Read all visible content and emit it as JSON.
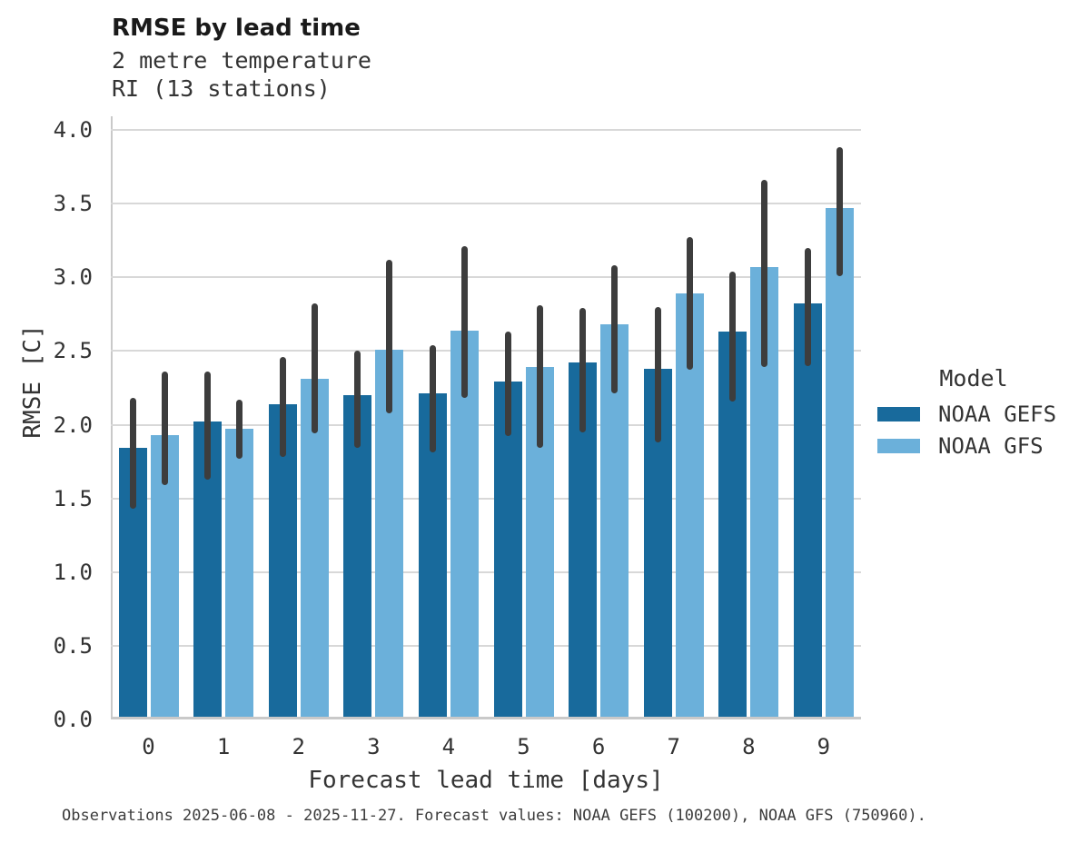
{
  "chart_data": {
    "type": "bar",
    "title": "RMSE by lead time",
    "subtitle_line1": "2 metre temperature",
    "subtitle_line2": "RI (13 stations)",
    "xlabel": "Forecast lead time [days]",
    "ylabel": "RMSE [C]",
    "categories": [
      "0",
      "1",
      "2",
      "3",
      "4",
      "5",
      "6",
      "7",
      "8",
      "9"
    ],
    "ylim": [
      0.0,
      4.0
    ],
    "ytick_step": 0.5,
    "grid": true,
    "legend": {
      "title": "Model",
      "position": "right"
    },
    "series": [
      {
        "name": "NOAA GEFS",
        "color": "#186a9c",
        "values": [
          1.84,
          2.02,
          2.14,
          2.2,
          2.21,
          2.29,
          2.42,
          2.38,
          2.63,
          2.82
        ],
        "err_low": [
          1.43,
          1.63,
          1.78,
          1.84,
          1.81,
          1.92,
          1.95,
          1.88,
          2.16,
          2.4
        ],
        "err_high": [
          2.18,
          2.36,
          2.46,
          2.5,
          2.54,
          2.63,
          2.79,
          2.8,
          3.04,
          3.2
        ]
      },
      {
        "name": "NOAA GFS",
        "color": "#6bb0da",
        "values": [
          1.93,
          1.97,
          2.31,
          2.51,
          2.64,
          2.39,
          2.68,
          2.89,
          3.07,
          3.47
        ],
        "err_low": [
          1.59,
          1.77,
          1.94,
          2.08,
          2.18,
          1.84,
          2.21,
          2.37,
          2.39,
          3.01
        ],
        "err_high": [
          2.36,
          2.17,
          2.82,
          3.12,
          3.21,
          2.81,
          3.08,
          3.27,
          3.66,
          3.88
        ]
      }
    ],
    "errorbar_color": "#3d3d3d",
    "caption": "Observations 2025-06-08 - 2025-11-27. Forecast values: NOAA GEFS (100200), NOAA GFS (750960)."
  }
}
